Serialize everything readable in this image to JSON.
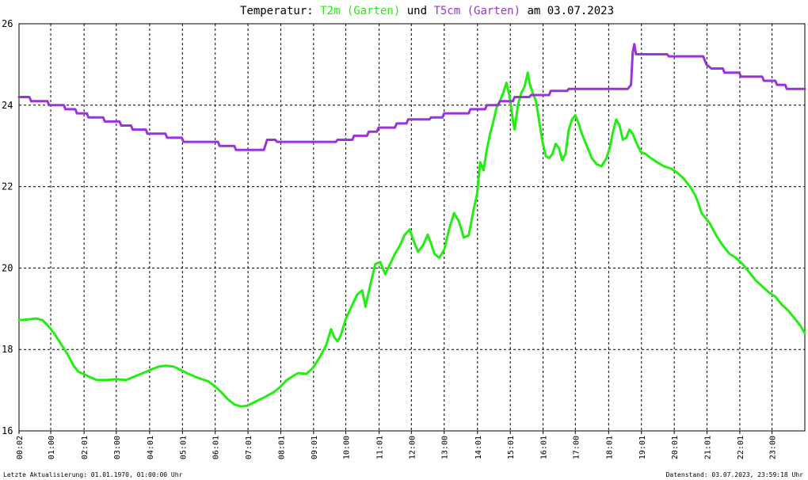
{
  "title_parts": {
    "prefix": "Temperatur: ",
    "series1": "T2m (Garten)",
    "mid": " und ",
    "series2": "T5cm (Garten)",
    "suffix": " am 03.07.2023"
  },
  "colors": {
    "t2m": "#22ee11",
    "t5cm": "#9933dd",
    "grid": "#000000",
    "background": "#ffffff"
  },
  "footer": {
    "left": "Letzte Aktualisierung: 01.01.1970, 01:00:00 Uhr",
    "right": "Datenstand: 03.07.2023, 23:59:18 Uhr"
  },
  "chart_data": {
    "type": "line",
    "title": "Temperatur: T2m (Garten) und T5cm (Garten) am 03.07.2023",
    "xlabel": "",
    "ylabel": "",
    "ylim": [
      16,
      26
    ],
    "yticks": [
      16,
      18,
      20,
      22,
      24,
      26
    ],
    "xlim": [
      0.033,
      24
    ],
    "xticks": [
      {
        "label": "00:02",
        "x": 0.033
      },
      {
        "label": "01:00",
        "x": 1.0
      },
      {
        "label": "02:01",
        "x": 2.017
      },
      {
        "label": "03:00",
        "x": 3.0
      },
      {
        "label": "04:01",
        "x": 4.017
      },
      {
        "label": "05:01",
        "x": 5.017
      },
      {
        "label": "06:01",
        "x": 6.017
      },
      {
        "label": "07:01",
        "x": 7.017
      },
      {
        "label": "08:01",
        "x": 8.017
      },
      {
        "label": "09:01",
        "x": 9.017
      },
      {
        "label": "10:00",
        "x": 10.0
      },
      {
        "label": "11:01",
        "x": 11.017
      },
      {
        "label": "12:00",
        "x": 12.0
      },
      {
        "label": "13:00",
        "x": 13.0
      },
      {
        "label": "14:01",
        "x": 14.017
      },
      {
        "label": "15:01",
        "x": 15.017
      },
      {
        "label": "16:01",
        "x": 16.017
      },
      {
        "label": "17:00",
        "x": 17.0
      },
      {
        "label": "18:01",
        "x": 18.017
      },
      {
        "label": "19:01",
        "x": 19.017
      },
      {
        "label": "20:01",
        "x": 20.017
      },
      {
        "label": "21:01",
        "x": 21.017
      },
      {
        "label": "22:01",
        "x": 22.017
      },
      {
        "label": "23:00",
        "x": 23.0
      }
    ],
    "grid": true,
    "series": [
      {
        "name": "T2m (Garten)",
        "color": "#22ee11",
        "points": [
          [
            0.03,
            18.72
          ],
          [
            0.3,
            18.74
          ],
          [
            0.55,
            18.76
          ],
          [
            0.75,
            18.72
          ],
          [
            0.9,
            18.6
          ],
          [
            1.1,
            18.4
          ],
          [
            1.3,
            18.15
          ],
          [
            1.5,
            17.9
          ],
          [
            1.7,
            17.6
          ],
          [
            1.85,
            17.45
          ],
          [
            2.0,
            17.4
          ],
          [
            2.2,
            17.32
          ],
          [
            2.4,
            17.25
          ],
          [
            2.7,
            17.25
          ],
          [
            3.0,
            17.27
          ],
          [
            3.3,
            17.25
          ],
          [
            3.6,
            17.35
          ],
          [
            3.9,
            17.45
          ],
          [
            4.1,
            17.52
          ],
          [
            4.3,
            17.58
          ],
          [
            4.5,
            17.6
          ],
          [
            4.75,
            17.58
          ],
          [
            4.95,
            17.5
          ],
          [
            5.2,
            17.4
          ],
          [
            5.5,
            17.3
          ],
          [
            5.8,
            17.22
          ],
          [
            6.0,
            17.1
          ],
          [
            6.2,
            16.95
          ],
          [
            6.4,
            16.78
          ],
          [
            6.6,
            16.65
          ],
          [
            6.8,
            16.6
          ],
          [
            7.0,
            16.62
          ],
          [
            7.2,
            16.7
          ],
          [
            7.5,
            16.82
          ],
          [
            7.8,
            16.95
          ],
          [
            8.0,
            17.08
          ],
          [
            8.2,
            17.25
          ],
          [
            8.4,
            17.35
          ],
          [
            8.55,
            17.42
          ],
          [
            8.8,
            17.4
          ],
          [
            9.0,
            17.55
          ],
          [
            9.2,
            17.8
          ],
          [
            9.4,
            18.1
          ],
          [
            9.55,
            18.5
          ],
          [
            9.65,
            18.3
          ],
          [
            9.75,
            18.2
          ],
          [
            9.85,
            18.35
          ],
          [
            10.0,
            18.75
          ],
          [
            10.2,
            19.1
          ],
          [
            10.35,
            19.35
          ],
          [
            10.5,
            19.45
          ],
          [
            10.6,
            19.05
          ],
          [
            10.75,
            19.6
          ],
          [
            10.9,
            20.1
          ],
          [
            11.05,
            20.15
          ],
          [
            11.2,
            19.85
          ],
          [
            11.35,
            20.1
          ],
          [
            11.5,
            20.35
          ],
          [
            11.65,
            20.55
          ],
          [
            11.8,
            20.82
          ],
          [
            11.95,
            20.95
          ],
          [
            12.05,
            20.7
          ],
          [
            12.2,
            20.4
          ],
          [
            12.35,
            20.55
          ],
          [
            12.5,
            20.82
          ],
          [
            12.6,
            20.6
          ],
          [
            12.7,
            20.35
          ],
          [
            12.85,
            20.25
          ],
          [
            13.0,
            20.45
          ],
          [
            13.15,
            20.95
          ],
          [
            13.3,
            21.35
          ],
          [
            13.45,
            21.15
          ],
          [
            13.6,
            20.75
          ],
          [
            13.75,
            20.8
          ],
          [
            13.9,
            21.45
          ],
          [
            14.0,
            21.8
          ],
          [
            14.1,
            22.6
          ],
          [
            14.2,
            22.4
          ],
          [
            14.3,
            22.9
          ],
          [
            14.4,
            23.3
          ],
          [
            14.5,
            23.6
          ],
          [
            14.6,
            23.95
          ],
          [
            14.7,
            24.1
          ],
          [
            14.8,
            24.3
          ],
          [
            14.9,
            24.55
          ],
          [
            15.0,
            24.2
          ],
          [
            15.1,
            23.6
          ],
          [
            15.15,
            23.4
          ],
          [
            15.25,
            24.0
          ],
          [
            15.35,
            24.3
          ],
          [
            15.45,
            24.45
          ],
          [
            15.55,
            24.8
          ],
          [
            15.6,
            24.55
          ],
          [
            15.7,
            24.3
          ],
          [
            15.8,
            24.1
          ],
          [
            15.9,
            23.6
          ],
          [
            16.0,
            23.1
          ],
          [
            16.1,
            22.75
          ],
          [
            16.2,
            22.7
          ],
          [
            16.3,
            22.8
          ],
          [
            16.4,
            23.05
          ],
          [
            16.5,
            22.95
          ],
          [
            16.6,
            22.65
          ],
          [
            16.7,
            22.8
          ],
          [
            16.8,
            23.4
          ],
          [
            16.9,
            23.65
          ],
          [
            17.0,
            23.75
          ],
          [
            17.1,
            23.55
          ],
          [
            17.2,
            23.3
          ],
          [
            17.35,
            23.0
          ],
          [
            17.5,
            22.7
          ],
          [
            17.65,
            22.55
          ],
          [
            17.8,
            22.5
          ],
          [
            17.95,
            22.7
          ],
          [
            18.05,
            22.95
          ],
          [
            18.15,
            23.35
          ],
          [
            18.25,
            23.65
          ],
          [
            18.35,
            23.5
          ],
          [
            18.45,
            23.15
          ],
          [
            18.55,
            23.2
          ],
          [
            18.65,
            23.4
          ],
          [
            18.75,
            23.3
          ],
          [
            18.85,
            23.1
          ],
          [
            19.0,
            22.85
          ],
          [
            19.15,
            22.8
          ],
          [
            19.3,
            22.7
          ],
          [
            19.5,
            22.6
          ],
          [
            19.7,
            22.5
          ],
          [
            19.9,
            22.45
          ],
          [
            20.1,
            22.35
          ],
          [
            20.3,
            22.2
          ],
          [
            20.5,
            22.0
          ],
          [
            20.65,
            21.8
          ],
          [
            20.75,
            21.6
          ],
          [
            20.85,
            21.35
          ],
          [
            20.95,
            21.25
          ],
          [
            21.1,
            21.1
          ],
          [
            21.3,
            20.8
          ],
          [
            21.5,
            20.55
          ],
          [
            21.7,
            20.35
          ],
          [
            21.9,
            20.25
          ],
          [
            22.1,
            20.1
          ],
          [
            22.3,
            19.9
          ],
          [
            22.5,
            19.7
          ],
          [
            22.7,
            19.55
          ],
          [
            22.9,
            19.4
          ],
          [
            23.1,
            19.3
          ],
          [
            23.3,
            19.1
          ],
          [
            23.5,
            18.95
          ],
          [
            23.7,
            18.75
          ],
          [
            23.85,
            18.6
          ],
          [
            24.0,
            18.4
          ]
        ]
      },
      {
        "name": "T5cm (Garten)",
        "color": "#9933dd",
        "points": [
          [
            0.03,
            24.2
          ],
          [
            0.35,
            24.2
          ],
          [
            0.4,
            24.1
          ],
          [
            0.9,
            24.1
          ],
          [
            0.95,
            24.0
          ],
          [
            1.4,
            24.0
          ],
          [
            1.45,
            23.9
          ],
          [
            1.75,
            23.9
          ],
          [
            1.8,
            23.8
          ],
          [
            2.1,
            23.8
          ],
          [
            2.15,
            23.7
          ],
          [
            2.6,
            23.7
          ],
          [
            2.65,
            23.6
          ],
          [
            3.1,
            23.6
          ],
          [
            3.15,
            23.5
          ],
          [
            3.45,
            23.5
          ],
          [
            3.5,
            23.4
          ],
          [
            3.9,
            23.4
          ],
          [
            3.95,
            23.3
          ],
          [
            4.5,
            23.3
          ],
          [
            4.55,
            23.2
          ],
          [
            5.0,
            23.2
          ],
          [
            5.05,
            23.1
          ],
          [
            6.1,
            23.1
          ],
          [
            6.15,
            23.0
          ],
          [
            6.6,
            23.0
          ],
          [
            6.65,
            22.9
          ],
          [
            7.5,
            22.9
          ],
          [
            7.6,
            23.15
          ],
          [
            7.85,
            23.15
          ],
          [
            7.9,
            23.1
          ],
          [
            9.7,
            23.1
          ],
          [
            9.75,
            23.15
          ],
          [
            10.2,
            23.15
          ],
          [
            10.25,
            23.25
          ],
          [
            10.65,
            23.25
          ],
          [
            10.7,
            23.35
          ],
          [
            10.95,
            23.35
          ],
          [
            11.0,
            23.45
          ],
          [
            11.5,
            23.45
          ],
          [
            11.55,
            23.55
          ],
          [
            11.85,
            23.55
          ],
          [
            11.9,
            23.65
          ],
          [
            12.55,
            23.65
          ],
          [
            12.6,
            23.7
          ],
          [
            12.95,
            23.7
          ],
          [
            13.0,
            23.8
          ],
          [
            13.75,
            23.8
          ],
          [
            13.8,
            23.9
          ],
          [
            14.25,
            23.9
          ],
          [
            14.3,
            24.0
          ],
          [
            14.65,
            24.0
          ],
          [
            14.7,
            24.1
          ],
          [
            15.1,
            24.1
          ],
          [
            15.15,
            24.2
          ],
          [
            15.6,
            24.2
          ],
          [
            15.65,
            24.25
          ],
          [
            16.2,
            24.25
          ],
          [
            16.25,
            24.35
          ],
          [
            16.75,
            24.35
          ],
          [
            16.8,
            24.4
          ],
          [
            18.6,
            24.4
          ],
          [
            18.7,
            24.5
          ],
          [
            18.75,
            25.3
          ],
          [
            18.8,
            25.5
          ],
          [
            18.85,
            25.25
          ],
          [
            19.8,
            25.25
          ],
          [
            19.85,
            25.2
          ],
          [
            20.9,
            25.2
          ],
          [
            21.0,
            25.0
          ],
          [
            21.15,
            24.9
          ],
          [
            21.5,
            24.9
          ],
          [
            21.55,
            24.8
          ],
          [
            22.0,
            24.8
          ],
          [
            22.05,
            24.7
          ],
          [
            22.7,
            24.7
          ],
          [
            22.75,
            24.6
          ],
          [
            23.1,
            24.6
          ],
          [
            23.15,
            24.5
          ],
          [
            23.4,
            24.5
          ],
          [
            23.45,
            24.4
          ],
          [
            24.0,
            24.4
          ]
        ]
      }
    ]
  }
}
